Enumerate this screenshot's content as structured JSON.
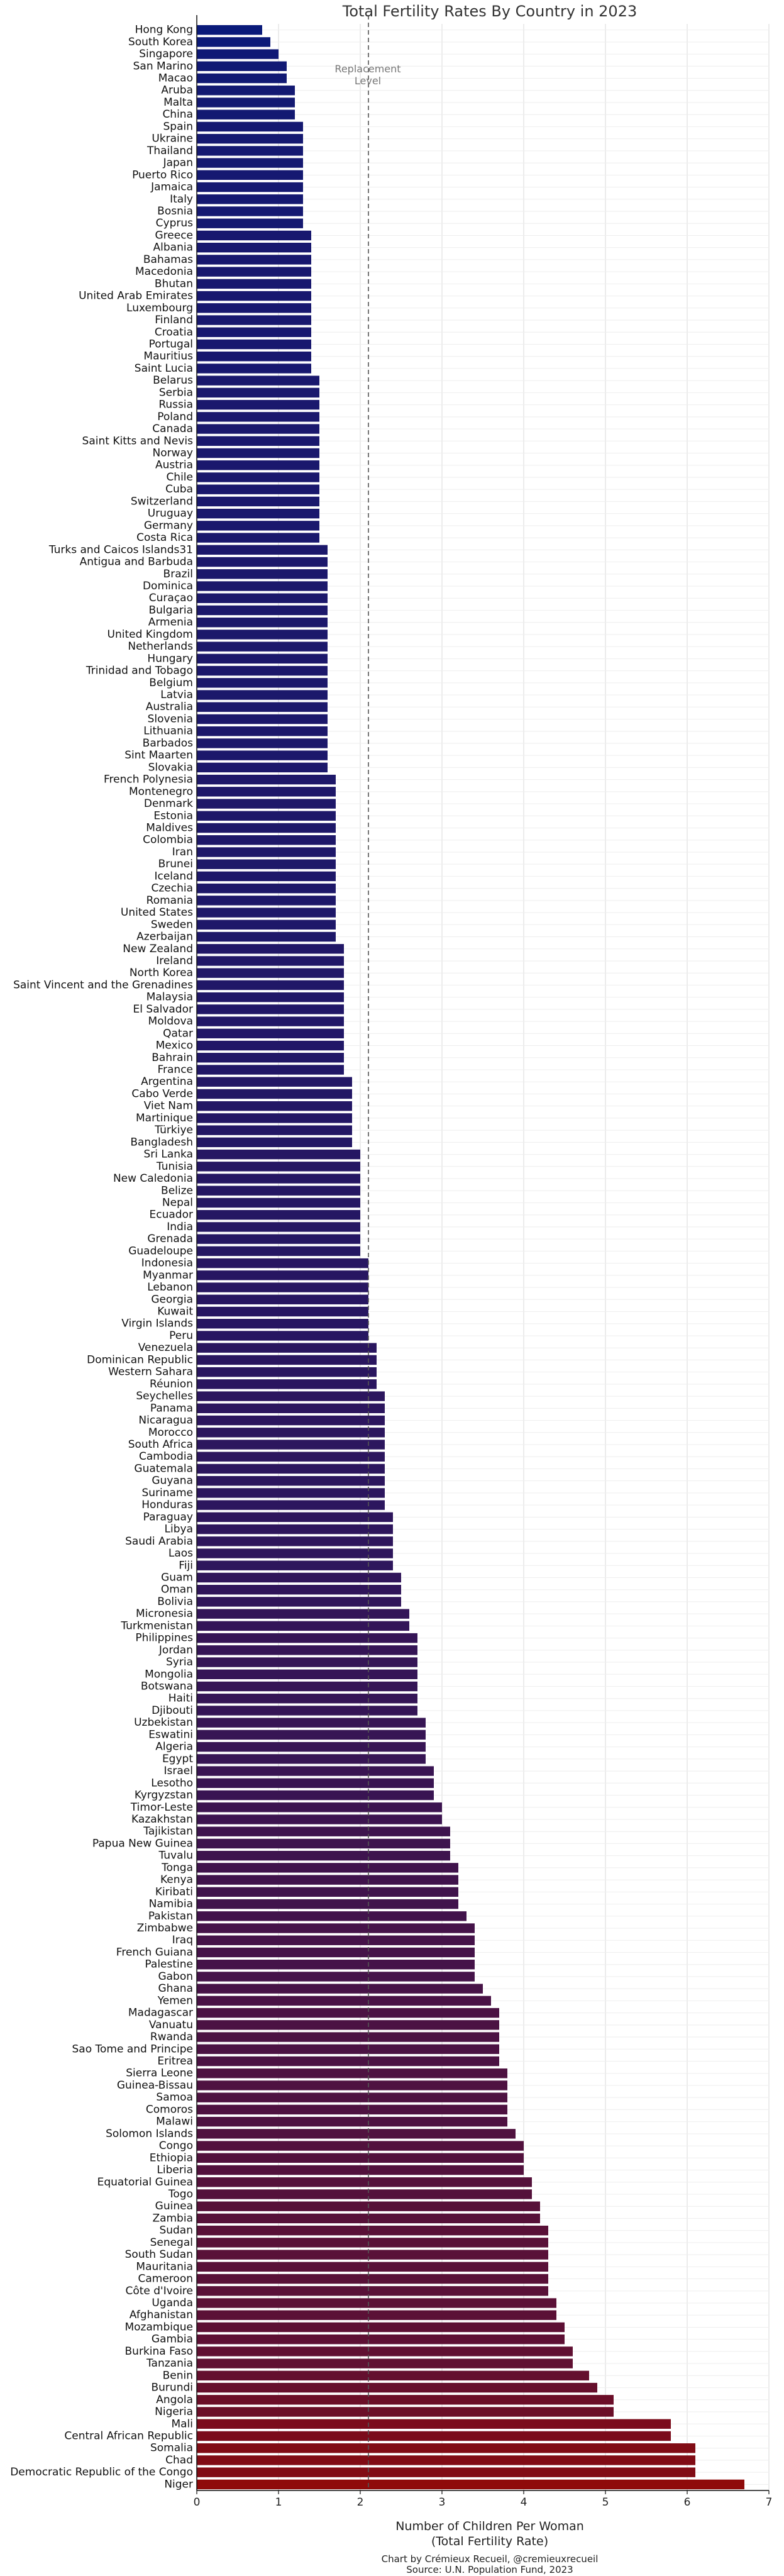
{
  "chart_data": {
    "type": "bar",
    "orientation": "horizontal",
    "title": "Total Fertility Rates By Country in 2023",
    "xlabel": "Number of Children Per Woman\n(Total Fertility Rate)",
    "ylabel": "",
    "xlim": [
      0,
      7
    ],
    "xticks": [
      0,
      1,
      2,
      3,
      4,
      5,
      6,
      7
    ],
    "grid": "vertical",
    "reference_line": {
      "value": 2.1,
      "label": "Replacement\nLevel",
      "style": "dashed"
    },
    "color_low": "#0a1a7a",
    "color_high": "#8f0a0a",
    "categories": [
      "Hong Kong",
      "South Korea",
      "Singapore",
      "San Marino",
      "Macao",
      "Aruba",
      "Malta",
      "China",
      "Spain",
      "Ukraine",
      "Thailand",
      "Japan",
      "Puerto Rico",
      "Jamaica",
      "Italy",
      "Bosnia",
      "Cyprus",
      "Greece",
      "Albania",
      "Bahamas",
      "Macedonia",
      "Bhutan",
      "United Arab Emirates",
      "Luxembourg",
      "Finland",
      "Croatia",
      "Portugal",
      "Mauritius",
      "Saint Lucia",
      "Belarus",
      "Serbia",
      "Russia",
      "Poland",
      "Canada",
      "Saint Kitts and Nevis",
      "Norway",
      "Austria",
      "Chile",
      "Cuba",
      "Switzerland",
      "Uruguay",
      "Germany",
      "Costa Rica",
      "Turks and Caicos Islands31",
      "Antigua and Barbuda",
      "Brazil",
      "Dominica",
      "Curaçao",
      "Bulgaria",
      "Armenia",
      "United Kingdom",
      "Netherlands",
      "Hungary",
      "Trinidad and Tobago",
      "Belgium",
      "Latvia",
      "Australia",
      "Slovenia",
      "Lithuania",
      "Barbados",
      "Sint Maarten",
      "Slovakia",
      "French Polynesia",
      "Montenegro",
      "Denmark",
      "Estonia",
      "Maldives",
      "Colombia",
      "Iran",
      "Brunei",
      "Iceland",
      "Czechia",
      "Romania",
      "United States",
      "Sweden",
      "Azerbaijan",
      "New Zealand",
      "Ireland",
      "North Korea",
      "Saint Vincent and the Grenadines",
      "Malaysia",
      "El Salvador",
      "Moldova",
      "Qatar",
      "Mexico",
      "Bahrain",
      "France",
      "Argentina",
      "Cabo Verde",
      "Viet Nam",
      "Martinique",
      "Türkiye",
      "Bangladesh",
      "Sri Lanka",
      "Tunisia",
      "New Caledonia",
      "Belize",
      "Nepal",
      "Ecuador",
      "India",
      "Grenada",
      "Guadeloupe",
      "Indonesia",
      "Myanmar",
      "Lebanon",
      "Georgia",
      "Kuwait",
      "Virgin Islands",
      "Peru",
      "Venezuela",
      "Dominican Republic",
      "Western Sahara",
      "Réunion",
      "Seychelles",
      "Panama",
      "Nicaragua",
      "Morocco",
      "South Africa",
      "Cambodia",
      "Guatemala",
      "Guyana",
      "Suriname",
      "Honduras",
      "Paraguay",
      "Libya",
      "Saudi Arabia",
      "Laos",
      "Fiji",
      "Guam",
      "Oman",
      "Bolivia",
      "Micronesia",
      "Turkmenistan",
      "Philippines",
      "Jordan",
      "Syria",
      "Mongolia",
      "Botswana",
      "Haiti",
      "Djibouti",
      "Uzbekistan",
      "Eswatini",
      "Algeria",
      "Egypt",
      "Israel",
      "Lesotho",
      "Kyrgyzstan",
      "Timor-Leste",
      "Kazakhstan",
      "Tajikistan",
      "Papua New Guinea",
      "Tuvalu",
      "Tonga",
      "Kenya",
      "Kiribati",
      "Namibia",
      "Pakistan",
      "Zimbabwe",
      "Iraq",
      "French Guiana",
      "Palestine",
      "Gabon",
      "Ghana",
      "Yemen",
      "Madagascar",
      "Vanuatu",
      "Rwanda",
      "Sao Tome and Principe",
      "Eritrea",
      "Sierra Leone",
      "Guinea-Bissau",
      "Samoa",
      "Comoros",
      "Malawi",
      "Solomon Islands",
      "Congo",
      "Ethiopia",
      "Liberia",
      "Equatorial Guinea",
      "Togo",
      "Guinea",
      "Zambia",
      "Sudan",
      "Senegal",
      "South Sudan",
      "Mauritania",
      "Cameroon",
      "Côte d'Ivoire",
      "Uganda",
      "Afghanistan",
      "Mozambique",
      "Gambia",
      "Burkina Faso",
      "Tanzania",
      "Benin",
      "Burundi",
      "Angola",
      "Nigeria",
      "Mali",
      "Central African Republic",
      "Somalia",
      "Chad",
      "Democratic Republic of the Congo",
      "Niger"
    ],
    "values": [
      0.8,
      0.9,
      1.0,
      1.1,
      1.1,
      1.2,
      1.2,
      1.2,
      1.3,
      1.3,
      1.3,
      1.3,
      1.3,
      1.3,
      1.3,
      1.3,
      1.3,
      1.4,
      1.4,
      1.4,
      1.4,
      1.4,
      1.4,
      1.4,
      1.4,
      1.4,
      1.4,
      1.4,
      1.4,
      1.5,
      1.5,
      1.5,
      1.5,
      1.5,
      1.5,
      1.5,
      1.5,
      1.5,
      1.5,
      1.5,
      1.5,
      1.5,
      1.5,
      1.6,
      1.6,
      1.6,
      1.6,
      1.6,
      1.6,
      1.6,
      1.6,
      1.6,
      1.6,
      1.6,
      1.6,
      1.6,
      1.6,
      1.6,
      1.6,
      1.6,
      1.6,
      1.6,
      1.7,
      1.7,
      1.7,
      1.7,
      1.7,
      1.7,
      1.7,
      1.7,
      1.7,
      1.7,
      1.7,
      1.7,
      1.7,
      1.7,
      1.8,
      1.8,
      1.8,
      1.8,
      1.8,
      1.8,
      1.8,
      1.8,
      1.8,
      1.8,
      1.8,
      1.9,
      1.9,
      1.9,
      1.9,
      1.9,
      1.9,
      2.0,
      2.0,
      2.0,
      2.0,
      2.0,
      2.0,
      2.0,
      2.0,
      2.0,
      2.1,
      2.1,
      2.1,
      2.1,
      2.1,
      2.1,
      2.1,
      2.2,
      2.2,
      2.2,
      2.2,
      2.3,
      2.3,
      2.3,
      2.3,
      2.3,
      2.3,
      2.3,
      2.3,
      2.3,
      2.3,
      2.4,
      2.4,
      2.4,
      2.4,
      2.4,
      2.5,
      2.5,
      2.5,
      2.6,
      2.6,
      2.7,
      2.7,
      2.7,
      2.7,
      2.7,
      2.7,
      2.7,
      2.8,
      2.8,
      2.8,
      2.8,
      2.9,
      2.9,
      2.9,
      3.0,
      3.0,
      3.1,
      3.1,
      3.1,
      3.2,
      3.2,
      3.2,
      3.2,
      3.3,
      3.4,
      3.4,
      3.4,
      3.4,
      3.4,
      3.5,
      3.6,
      3.7,
      3.7,
      3.7,
      3.7,
      3.7,
      3.8,
      3.8,
      3.8,
      3.8,
      3.8,
      3.9,
      4.0,
      4.0,
      4.0,
      4.1,
      4.1,
      4.2,
      4.2,
      4.3,
      4.3,
      4.3,
      4.3,
      4.3,
      4.3,
      4.4,
      4.4,
      4.5,
      4.5,
      4.6,
      4.6,
      4.8,
      4.9,
      5.1,
      5.1,
      5.8,
      5.8,
      6.1,
      6.1,
      6.1,
      6.7
    ]
  },
  "credit": {
    "line1": "Chart by Crémieux Recueil, @cremieuxrecueil",
    "line2": "Source: U.N. Population Fund, 2023"
  }
}
